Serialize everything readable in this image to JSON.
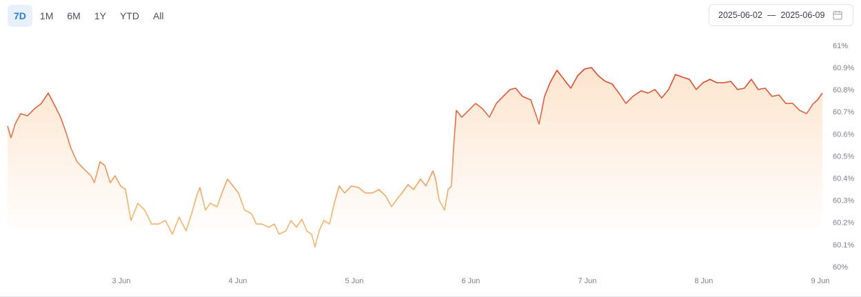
{
  "controls": {
    "ranges": [
      "7D",
      "1M",
      "6M",
      "1Y",
      "YTD",
      "All"
    ],
    "active": 0,
    "date_from": "2025-06-02",
    "separator": "—",
    "date_to": "2025-06-09"
  },
  "chart_data": {
    "type": "area",
    "x": [
      2.024,
      2.053,
      2.089,
      2.136,
      2.195,
      2.254,
      2.314,
      2.373,
      2.42,
      2.479,
      2.521,
      2.568,
      2.621,
      2.68,
      2.74,
      2.769,
      2.817,
      2.858,
      2.905,
      2.947,
      2.994,
      3.036,
      3.083,
      3.142,
      3.201,
      3.26,
      3.32,
      3.379,
      3.438,
      3.497,
      3.556,
      3.604,
      3.645,
      3.675,
      3.722,
      3.763,
      3.822,
      3.864,
      3.911,
      3.959,
      4.006,
      4.059,
      4.118,
      4.16,
      4.207,
      4.266,
      4.314,
      4.355,
      4.414,
      4.456,
      4.503,
      4.55,
      4.592,
      4.633,
      4.663,
      4.698,
      4.74,
      4.787,
      4.828,
      4.87,
      4.917,
      4.976,
      5.036,
      5.095,
      5.154,
      5.213,
      5.272,
      5.32,
      5.361,
      5.408,
      5.462,
      5.509,
      5.568,
      5.615,
      5.675,
      5.698,
      5.728,
      5.775,
      5.805,
      5.834,
      5.852,
      5.876,
      5.923,
      5.982,
      6.041,
      6.101,
      6.16,
      6.219,
      6.278,
      6.337,
      6.385,
      6.444,
      6.515,
      6.556,
      6.586,
      6.633,
      6.68,
      6.74,
      6.799,
      6.858,
      6.917,
      6.976,
      7.036,
      7.095,
      7.154,
      7.213,
      7.272,
      7.331,
      7.391,
      7.462,
      7.521,
      7.58,
      7.639,
      7.698,
      7.757,
      7.817,
      7.876,
      7.935,
      7.994,
      8.053,
      8.112,
      8.172,
      8.231,
      8.29,
      8.349,
      8.408,
      8.467,
      8.527,
      8.586,
      8.645,
      8.704,
      8.763,
      8.822,
      8.882,
      8.941,
      8.976,
      9.018
    ],
    "values": [
      60.639,
      60.586,
      60.648,
      60.695,
      60.685,
      60.717,
      60.741,
      60.788,
      60.741,
      60.679,
      60.617,
      60.539,
      60.477,
      60.445,
      60.414,
      60.383,
      60.477,
      60.461,
      60.383,
      60.414,
      60.368,
      60.352,
      60.212,
      60.29,
      60.259,
      60.196,
      60.196,
      60.212,
      60.15,
      60.227,
      60.165,
      60.243,
      60.321,
      60.361,
      60.259,
      60.29,
      60.274,
      60.336,
      60.399,
      60.368,
      60.336,
      60.259,
      60.243,
      60.196,
      60.196,
      60.181,
      60.196,
      60.15,
      60.165,
      60.212,
      60.181,
      60.218,
      60.165,
      60.15,
      60.093,
      60.165,
      60.212,
      60.196,
      60.29,
      60.368,
      60.336,
      60.368,
      60.361,
      60.336,
      60.336,
      60.352,
      60.321,
      60.274,
      60.305,
      60.336,
      60.374,
      60.352,
      60.399,
      60.368,
      60.436,
      60.399,
      60.305,
      60.259,
      60.352,
      60.368,
      60.539,
      60.71,
      60.679,
      60.71,
      60.741,
      60.717,
      60.679,
      60.741,
      60.773,
      60.804,
      60.81,
      60.773,
      60.757,
      60.695,
      60.648,
      60.773,
      60.835,
      60.891,
      60.85,
      60.81,
      60.866,
      60.897,
      60.903,
      60.866,
      60.841,
      60.829,
      60.788,
      60.741,
      60.773,
      60.798,
      60.788,
      60.804,
      60.766,
      60.804,
      60.872,
      60.86,
      60.85,
      60.804,
      60.835,
      60.85,
      60.835,
      60.835,
      60.841,
      60.804,
      60.81,
      60.85,
      60.804,
      60.81,
      60.773,
      60.779,
      60.741,
      60.741,
      60.71,
      60.695,
      60.741,
      60.757,
      60.788
    ],
    "xlim": [
      2.024,
      9.018
    ],
    "xticks": [
      {
        "value": 3,
        "label": "3 Jun"
      },
      {
        "value": 4,
        "label": "4 Jun"
      },
      {
        "value": 5,
        "label": "5 Jun"
      },
      {
        "value": 6,
        "label": "6 Jun"
      },
      {
        "value": 7,
        "label": "7 Jun"
      },
      {
        "value": 8,
        "label": "8 Jun"
      },
      {
        "value": 9,
        "label": "9 Jun"
      }
    ],
    "ylim": [
      60,
      61
    ],
    "yticks": [
      {
        "value": 60,
        "label": "60%"
      },
      {
        "value": 60.1,
        "label": "60.1%"
      },
      {
        "value": 60.2,
        "label": "60.2%"
      },
      {
        "value": 60.3,
        "label": "60.3%"
      },
      {
        "value": 60.4,
        "label": "60.4%"
      },
      {
        "value": 60.5,
        "label": "60.5%"
      },
      {
        "value": 60.6,
        "label": "60.6%"
      },
      {
        "value": 60.7,
        "label": "60.7%"
      },
      {
        "value": 60.8,
        "label": "60.8%"
      },
      {
        "value": 60.9,
        "label": "60.9%"
      },
      {
        "value": 61,
        "label": "61%"
      }
    ],
    "line_colors": [
      "#f5b36e",
      "#d5402a"
    ],
    "fill_color": "#fcdcbd",
    "grid": false
  }
}
